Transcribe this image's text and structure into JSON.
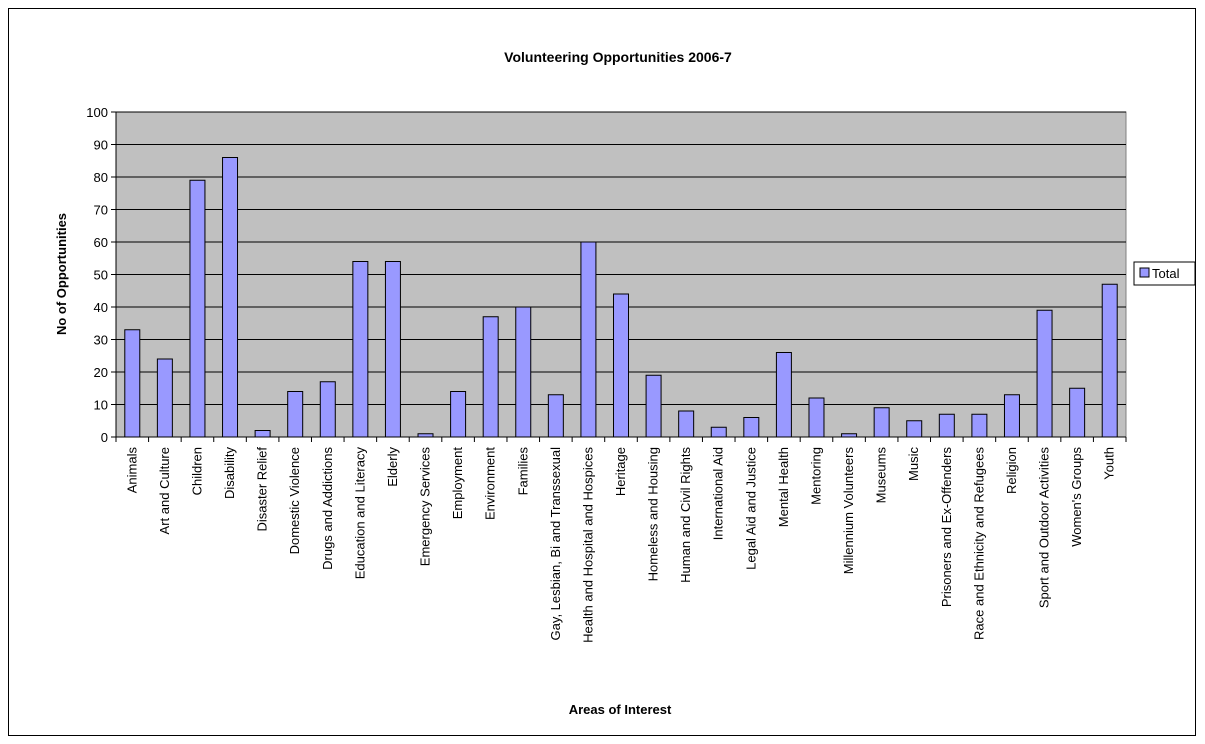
{
  "chart_data": {
    "type": "bar",
    "title": "Volunteering Opportunities 2006-7",
    "xlabel": "Areas of Interest",
    "ylabel": "No of Opportunities",
    "ylim": [
      0,
      100
    ],
    "yticks": [
      0,
      10,
      20,
      30,
      40,
      50,
      60,
      70,
      80,
      90,
      100
    ],
    "grid": true,
    "legend_position": "right",
    "colors": {
      "bar_fill": "#9999ff",
      "plot_background": "#c0c0c0",
      "border": "#000000"
    },
    "categories": [
      "Animals",
      "Art and Culture",
      "Children",
      "Disability",
      "Disaster Relief",
      "Domestic Violence",
      "Drugs and Addictions",
      "Education and Literacy",
      "Elderly",
      "Emergency Services",
      "Employment",
      "Environment",
      "Families",
      "Gay, Lesbian, Bi and Transsexual",
      "Health and Hospital and Hospices",
      "Heritage",
      "Homeless and Housing",
      "Human and Civil Rights",
      "International Aid",
      "Legal Aid and Justice",
      "Mental Health",
      "Mentoring",
      "Millennium Volunteers",
      "Museums",
      "Music",
      "Prisoners and Ex-Offenders",
      "Race and Ethnicity and Refugees",
      "Religion",
      "Sport and Outdoor Activities",
      "Women's Groups",
      "Youth"
    ],
    "series": [
      {
        "name": "Total",
        "values": [
          33,
          24,
          79,
          86,
          2,
          14,
          17,
          54,
          54,
          1,
          14,
          37,
          40,
          13,
          60,
          44,
          19,
          8,
          3,
          6,
          26,
          12,
          1,
          9,
          5,
          7,
          7,
          13,
          39,
          15,
          47
        ]
      }
    ]
  }
}
